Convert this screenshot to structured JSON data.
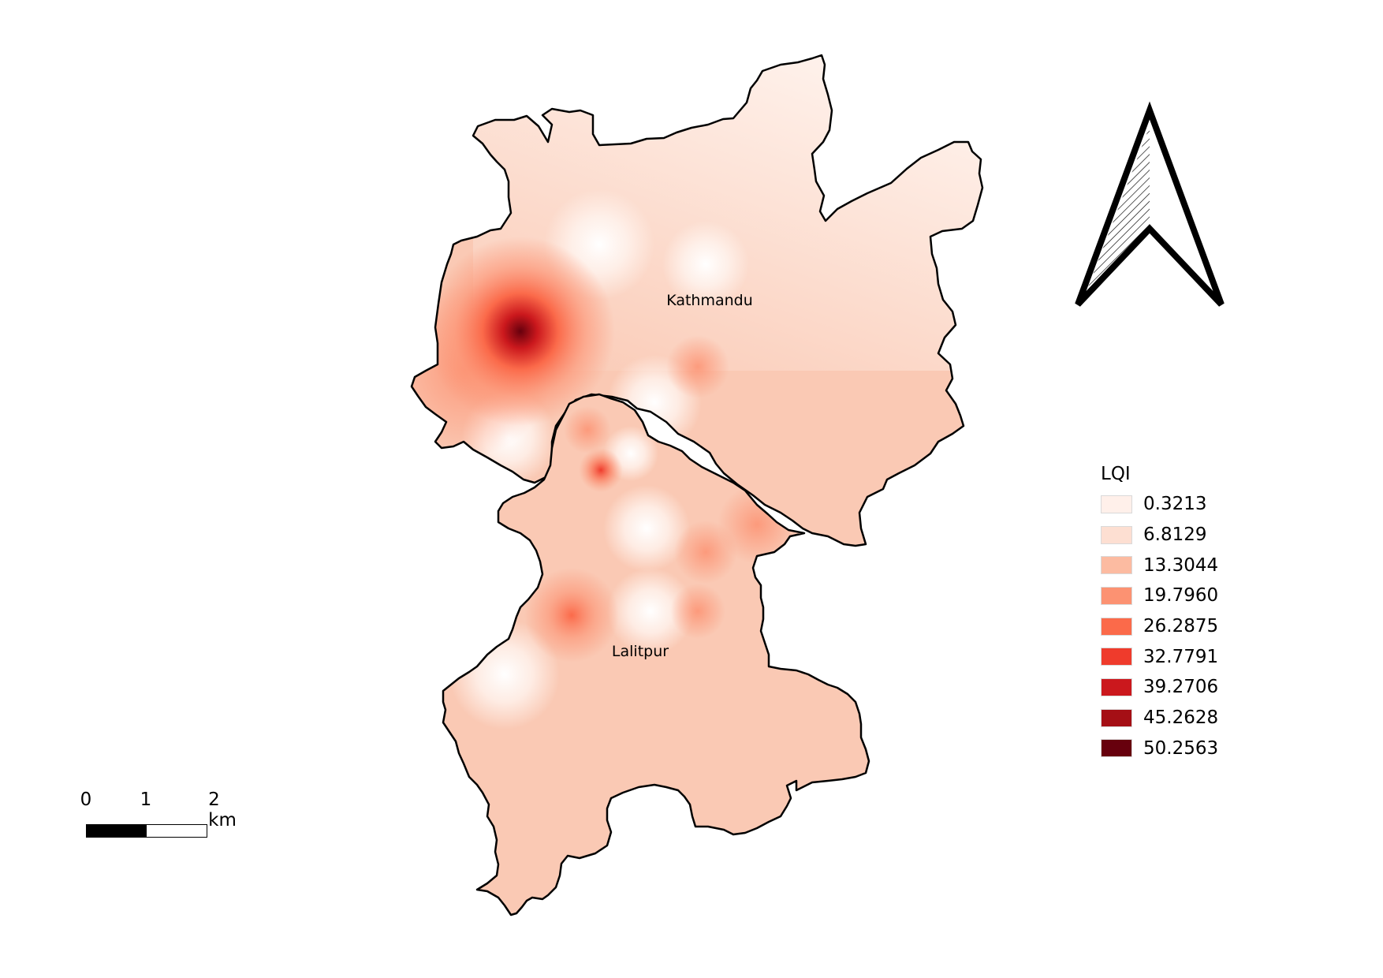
{
  "map": {
    "places": [
      {
        "name": "Kathmandu"
      },
      {
        "name": "Lalitpur"
      }
    ],
    "colors": {
      "boundary": "#000000",
      "base_fill": "#fac9b4"
    }
  },
  "north_arrow": {
    "icon": "north-arrow-icon"
  },
  "legend": {
    "title": "LQI",
    "items": [
      {
        "label": "0.3213",
        "color": "#fff0ea"
      },
      {
        "label": "6.8129",
        "color": "#fddfd2"
      },
      {
        "label": "13.3044",
        "color": "#fcbba1"
      },
      {
        "label": "19.7960",
        "color": "#fc9272"
      },
      {
        "label": "26.2875",
        "color": "#fb6a4a"
      },
      {
        "label": "32.7791",
        "color": "#ef3b2c"
      },
      {
        "label": "39.2706",
        "color": "#cb181d"
      },
      {
        "label": "45.2628",
        "color": "#a50f15"
      },
      {
        "label": "50.2563",
        "color": "#67000d"
      }
    ]
  },
  "scale_bar": {
    "ticks": [
      "0",
      "1",
      "2 km"
    ]
  }
}
